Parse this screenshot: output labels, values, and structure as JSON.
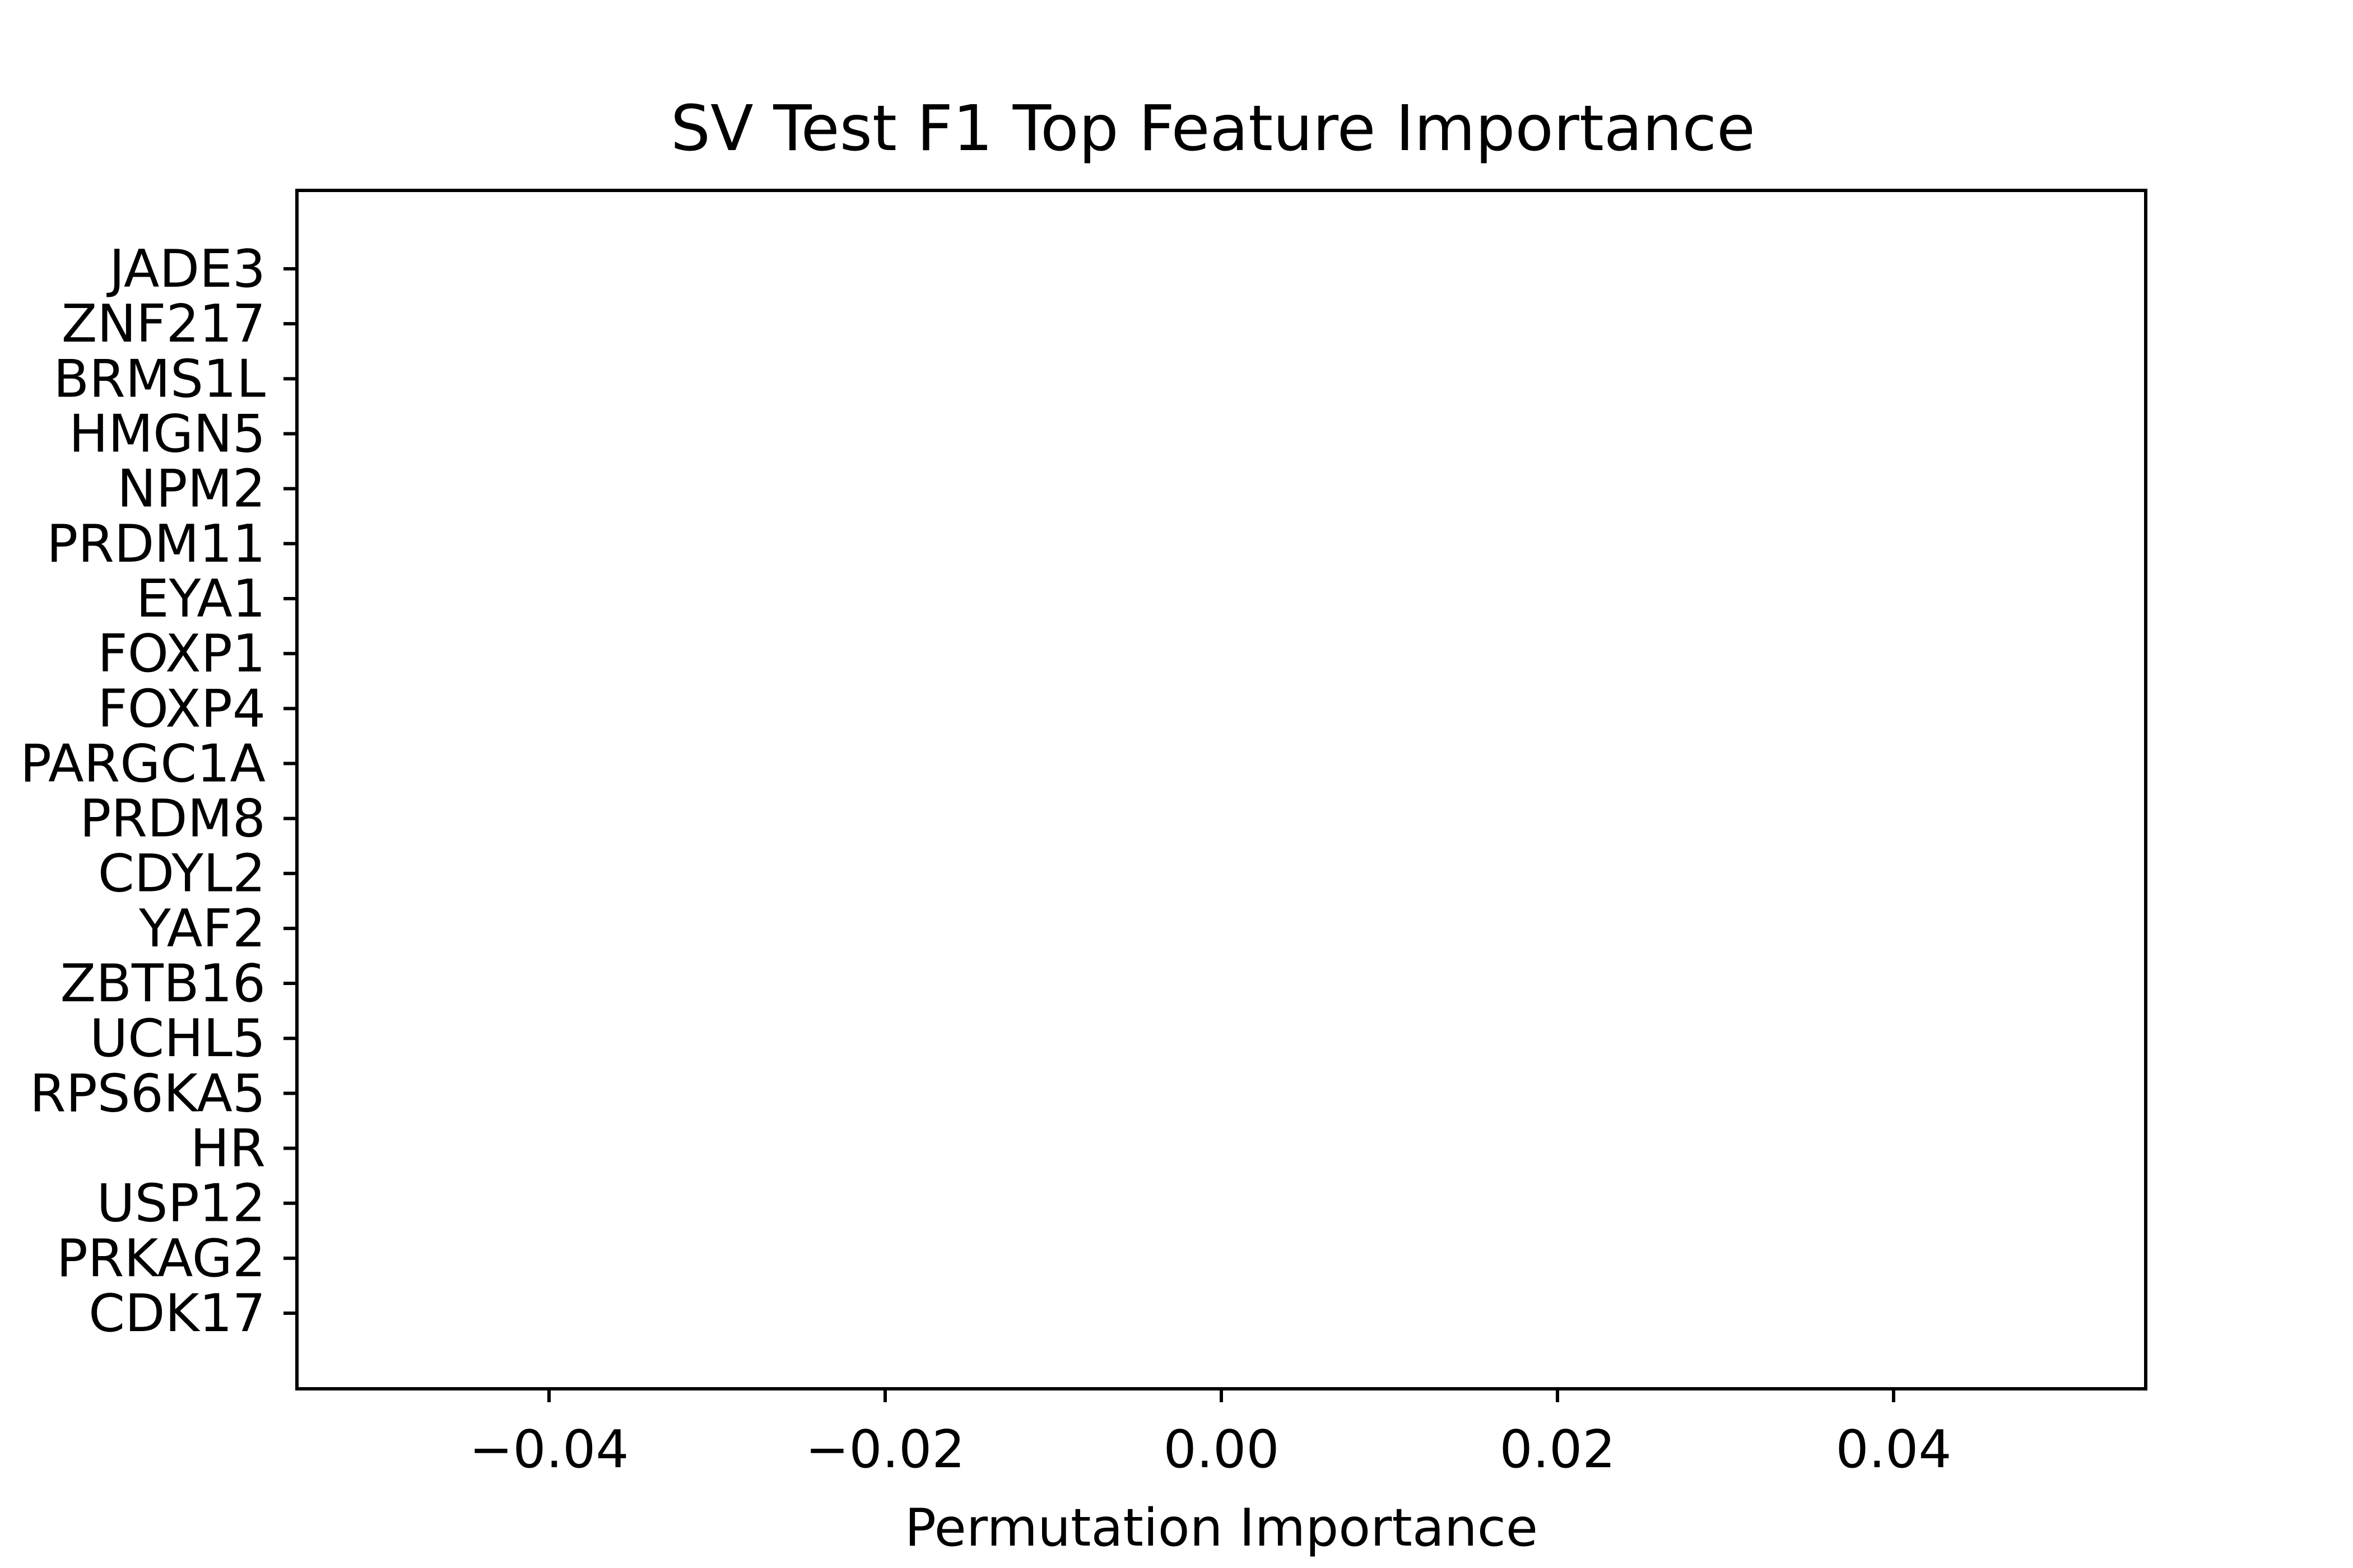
{
  "chart_data": {
    "type": "bar",
    "orientation": "horizontal",
    "title": "SV Test F1 Top Feature Importance",
    "xlabel": "Permutation Importance",
    "ylabel": "",
    "categories": [
      "JADE3",
      "ZNF217",
      "BRMS1L",
      "HMGN5",
      "NPM2",
      "PRDM11",
      "EYA1",
      "FOXP1",
      "FOXP4",
      "PARGC1A",
      "PRDM8",
      "CDYL2",
      "YAF2",
      "ZBTB16",
      "UCHL5",
      "RPS6KA5",
      "HR",
      "USP12",
      "PRKAG2",
      "CDK17"
    ],
    "values": [
      0,
      0,
      0,
      0,
      0,
      0,
      0,
      0,
      0,
      0,
      0,
      0,
      0,
      0,
      0,
      0,
      0,
      0,
      0,
      0
    ],
    "xlim": [
      -0.055,
      0.055
    ],
    "xticks": [
      -0.04,
      -0.02,
      0.0,
      0.02,
      0.04
    ],
    "xtick_labels": [
      "−0.04",
      "−0.02",
      "0.00",
      "0.02",
      "0.04"
    ],
    "grid": false,
    "legend": false,
    "colors": {
      "axes": "#000000",
      "bar": "#1f77b4",
      "background": "#ffffff"
    }
  }
}
